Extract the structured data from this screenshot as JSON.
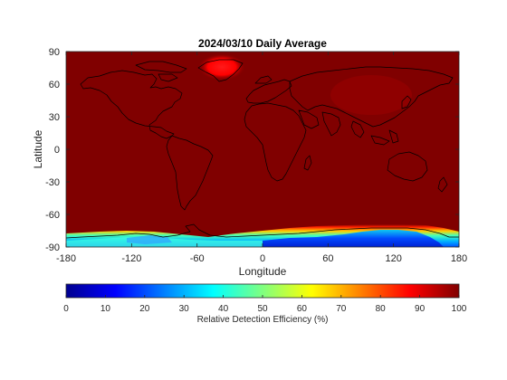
{
  "map": {
    "title": "2024/03/10 Daily Average",
    "xlabel": "Longitude",
    "ylabel": "Latitude",
    "x_ticks": [
      -180,
      -120,
      -60,
      0,
      60,
      120,
      180
    ],
    "y_ticks": [
      90,
      60,
      30,
      0,
      -30,
      -60,
      -90
    ],
    "xlim": [
      -180,
      180
    ],
    "ylim": [
      -90,
      90
    ],
    "colormap": "jet",
    "background_value": 100,
    "features": {
      "greenland_low": {
        "lon": -40,
        "lat": 74,
        "value": 82
      },
      "antarctic_band": {
        "lat_top": -77,
        "lat_bottom": -90,
        "min_value": 10
      }
    }
  },
  "colorbar": {
    "label": "Relative Detection Efficiency (%)",
    "ticks": [
      0,
      10,
      20,
      30,
      40,
      50,
      60,
      70,
      80,
      90,
      100
    ],
    "range": [
      0,
      100
    ]
  },
  "colors": {
    "jet_dark_red": "#800000",
    "red": "#ff0000",
    "yellow": "#ffff00",
    "cyan": "#00ffff",
    "blue": "#0000ff",
    "dark_blue": "#00008f"
  }
}
